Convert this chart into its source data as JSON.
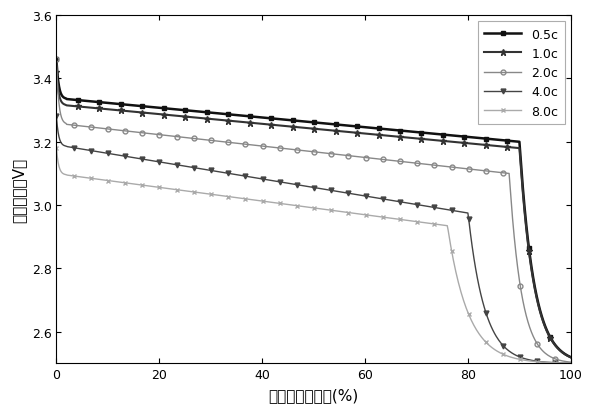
{
  "title": "",
  "xlabel": "放电容量保持率(%)",
  "ylabel": "放电电压（V）",
  "xlim": [
    0,
    100
  ],
  "ylim": [
    2.5,
    3.6
  ],
  "xticks": [
    0,
    20,
    40,
    60,
    80,
    100
  ],
  "yticks": [
    2.6,
    2.8,
    3.0,
    3.2,
    3.4,
    3.6
  ],
  "series": [
    {
      "label": "0.5c",
      "color": "#111111",
      "marker": "s",
      "markerfacecolor": "#111111",
      "linestyle": "-",
      "linewidth": 1.8,
      "markersize": 3.5,
      "markevery": 25,
      "v_start": 3.46,
      "v_plateau_start": 3.335,
      "v_plateau_end": 3.2,
      "knee": 90,
      "knee_steep": 7,
      "v_end": 2.5
    },
    {
      "label": "1.0c",
      "color": "#333333",
      "marker": "*",
      "markerfacecolor": "#333333",
      "linestyle": "-",
      "linewidth": 1.5,
      "markersize": 5,
      "markevery": 25,
      "v_start": 3.42,
      "v_plateau_start": 3.315,
      "v_plateau_end": 3.18,
      "knee": 90,
      "knee_steep": 7,
      "v_end": 2.5
    },
    {
      "label": "2.0c",
      "color": "#888888",
      "marker": "o",
      "markerfacecolor": "none",
      "linestyle": "-",
      "linewidth": 1.0,
      "markersize": 3.5,
      "markevery": 20,
      "v_start": 3.46,
      "v_plateau_start": 3.255,
      "v_plateau_end": 3.1,
      "knee": 88,
      "knee_steep": 6,
      "v_end": 2.5
    },
    {
      "label": "4.0c",
      "color": "#444444",
      "marker": "v",
      "markerfacecolor": "#444444",
      "linestyle": "-",
      "linewidth": 1.0,
      "markersize": 3.5,
      "markevery": 20,
      "v_start": 3.28,
      "v_plateau_start": 3.185,
      "v_plateau_end": 2.975,
      "knee": 80,
      "knee_steep": 8,
      "v_end": 2.5
    },
    {
      "label": "8.0c",
      "color": "#aaaaaa",
      "marker": "x",
      "markerfacecolor": "#aaaaaa",
      "linestyle": "-",
      "linewidth": 1.0,
      "markersize": 3.5,
      "markevery": 20,
      "v_start": 3.18,
      "v_plateau_start": 3.095,
      "v_plateau_end": 2.935,
      "knee": 76,
      "knee_steep": 10,
      "v_end": 2.5
    }
  ],
  "background_color": "#ffffff",
  "legend_loc": "upper right",
  "legend_fontsize": 9,
  "axis_fontsize": 11
}
